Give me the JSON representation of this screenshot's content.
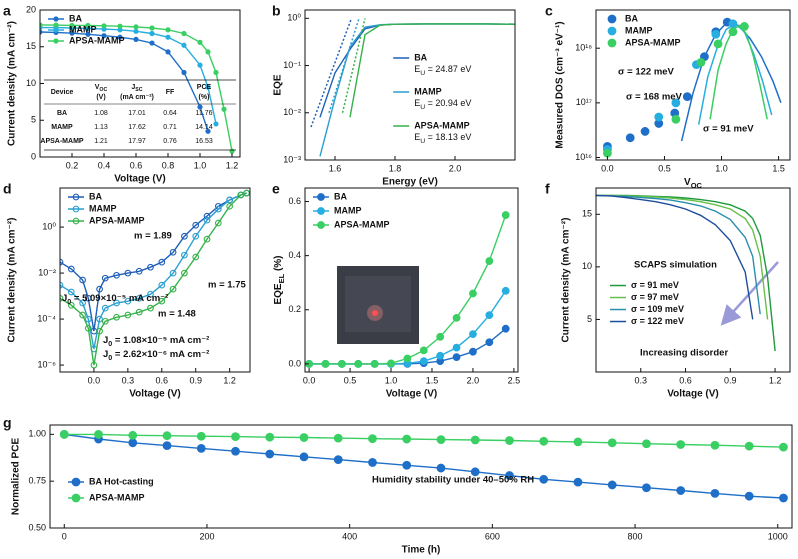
{
  "chart_data": [
    {
      "type": "line",
      "panel": "a",
      "xlabel": "Voltage (V)",
      "ylabel": "Current density (mA cm⁻²)",
      "marker": "filled",
      "legend": "upper left",
      "x": [
        0,
        0.1,
        0.2,
        0.3,
        0.4,
        0.5,
        0.6,
        0.7,
        0.8,
        0.9,
        1.0,
        1.05,
        1.1,
        1.15,
        1.2
      ],
      "xlim": [
        0,
        1.25
      ],
      "ylim": [
        0,
        20
      ],
      "xticks": [
        0.2,
        0.4,
        0.6,
        0.8,
        {
          "value": 1,
          "label": "1.0"
        },
        1.2
      ],
      "yticks": [
        0,
        5,
        10,
        15,
        20
      ],
      "series": [
        {
          "name": "BA",
          "color": "#1f6fc9",
          "values": [
            17.0,
            16.95,
            16.85,
            16.7,
            16.5,
            16.3,
            16.0,
            15.5,
            14.3,
            11.5,
            6.8,
            3.5,
            null,
            null,
            null
          ]
        },
        {
          "name": "MAMP",
          "color": "#27aee0",
          "values": [
            17.6,
            17.6,
            17.55,
            17.5,
            17.4,
            17.3,
            17.1,
            16.8,
            16.3,
            15.2,
            12.5,
            9.5,
            4.5,
            null,
            null
          ]
        },
        {
          "name": "APSA-MAMP",
          "color": "#39cf63",
          "values": [
            17.97,
            17.95,
            17.9,
            17.9,
            17.85,
            17.8,
            17.7,
            17.55,
            17.3,
            16.8,
            15.6,
            14.3,
            11.5,
            6.5,
            0.8
          ]
        }
      ],
      "table": {
        "columns": [
          "Device",
          {
            "text": "V",
            "sub": "OC",
            "line2": "(V)"
          },
          {
            "text": "J",
            "sub": "SC",
            "line2": "(mA cm⁻²)"
          },
          "FF",
          {
            "text": "PCE",
            "line2": "(%)"
          }
        ],
        "rows": [
          [
            "BA",
            1.08,
            17.01,
            0.64,
            11.76
          ],
          [
            "MAMP",
            1.13,
            17.62,
            0.71,
            14.14
          ],
          [
            "APSA-MAMP",
            1.21,
            17.97,
            0.76,
            16.53
          ]
        ]
      }
    },
    {
      "type": "line",
      "panel": "b",
      "xlabel": "Energy (eV)",
      "ylabel": "EQE",
      "marker": "none",
      "legend": "center right",
      "y_scale": "log",
      "fit_line_style": "dotted",
      "x": [
        1.5,
        1.55,
        1.6,
        1.65,
        1.7,
        1.75,
        1.8,
        1.9,
        2.0,
        2.1,
        2.2
      ],
      "xlim": [
        1.5,
        2.2
      ],
      "ylim": [
        0.001,
        1.5
      ],
      "xticks": [
        1.6,
        1.8,
        {
          "value": 2,
          "label": "2.0"
        }
      ],
      "yticks": [
        {
          "value": 0.001,
          "label": "10⁻³"
        },
        {
          "value": 0.01,
          "label": "10⁻²"
        },
        {
          "value": 0.1,
          "label": "10⁻¹"
        },
        {
          "value": 1,
          "label": "10⁰"
        }
      ],
      "series": [
        {
          "name": "BA",
          "urbach": {
            "text": "E",
            "sub": "U",
            "post": " = 24.87 eV"
          },
          "color": "#1f5fb8",
          "values": [
            null,
            0.008,
            0.07,
            0.22,
            0.6,
            0.72,
            0.75,
            0.76,
            0.76,
            0.76,
            0.75
          ],
          "fit_x": [
            1.52,
            1.655
          ],
          "fit_values": [
            0.005,
            1
          ]
        },
        {
          "name": "MAMP",
          "urbach": {
            "text": "E",
            "sub": "U",
            "post": " = 20.94 eV"
          },
          "color": "#2a9fd0",
          "values": [
            null,
            0.0012,
            0.02,
            0.25,
            0.65,
            0.73,
            0.75,
            0.76,
            0.76,
            0.76,
            0.75
          ],
          "fit_x": [
            1.58,
            1.68
          ],
          "fit_values": [
            0.01,
            1
          ]
        },
        {
          "name": "APSA-MAMP",
          "urbach": {
            "text": "E",
            "sub": "U",
            "post": " = 18.13 eV"
          },
          "color": "#36b24a",
          "values": [
            null,
            null,
            null,
            0.008,
            0.45,
            0.72,
            0.75,
            0.76,
            0.76,
            0.76,
            0.75
          ],
          "fit_x": [
            1.625,
            1.7
          ],
          "fit_values": [
            0.01,
            1
          ]
        }
      ]
    },
    {
      "type": "scatter",
      "panel": "c",
      "xlabel": {
        "text": "V",
        "sub": "OC"
      },
      "ylabel": "Measured DOS (cm⁻³ eV⁻¹)",
      "marker": "filled",
      "legend": "upper left",
      "y_scale": "log",
      "fit_line_style": "solid",
      "xlim": [
        -0.1,
        1.6
      ],
      "ylim": [
        9000000000000000.0,
        5e+18
      ],
      "xticks": [
        {
          "value": 0,
          "label": "0.0"
        },
        0.5,
        {
          "value": 1,
          "label": "1.0"
        },
        1.5
      ],
      "yticks": [
        {
          "value": 1e+16,
          "label": "10¹⁶"
        },
        {
          "value": 1e+17,
          "label": "10¹⁷"
        },
        {
          "value": 1e+18,
          "label": "10¹⁸"
        }
      ],
      "series": [
        {
          "name": "BA",
          "color": "#1f6fc9",
          "x": [
            0,
            0.2,
            0.33,
            0.45,
            0.59,
            0.7,
            0.85,
            0.95,
            1.05
          ],
          "values": [
            1.6e+16,
            2.3e+16,
            3e+16,
            4.2e+16,
            6.5e+16,
            1.3e+17,
            7e+17,
            2e+18,
            3e+18
          ],
          "fit_x": [
            0.65,
            0.75,
            0.85,
            0.95,
            1.05,
            1.15,
            1.25,
            1.35,
            1.45,
            1.52
          ],
          "fit_values": [
            2e+16,
            1.5e+17,
            7e+17,
            1.8e+18,
            3e+18,
            2.6e+18,
            1.5e+18,
            7e+17,
            2.5e+17,
            1e+17
          ]
        },
        {
          "name": "MAMP",
          "color": "#27aee0",
          "x": [
            0,
            0.45,
            0.6,
            0.78,
            0.95,
            1.1
          ],
          "values": [
            1.4e+16,
            5.5e+16,
            1e+17,
            5e+17,
            1.8e+18,
            2.8e+18
          ],
          "fit_x": [
            0.8,
            0.88,
            0.96,
            1.04,
            1.12,
            1.2,
            1.28,
            1.36,
            1.44
          ],
          "fit_values": [
            4e+16,
            3e+17,
            1e+18,
            2.2e+18,
            2.8e+18,
            2e+18,
            8e+17,
            2.5e+17,
            6e+16
          ]
        },
        {
          "name": "APSA-MAMP",
          "color": "#39cf63",
          "x": [
            0,
            0.6,
            0.82,
            0.97,
            1.1,
            1.2
          ],
          "values": [
            1.2e+16,
            5e+16,
            5.5e+17,
            1.2e+18,
            2e+18,
            2.5e+18
          ],
          "fit_x": [
            0.9,
            0.97,
            1.04,
            1.1,
            1.16,
            1.22,
            1.28,
            1.34,
            1.4
          ],
          "fit_values": [
            5e+16,
            4e+17,
            1.2e+18,
            2.2e+18,
            2.6e+18,
            1.8e+18,
            7e+17,
            2e+17,
            5e+16
          ]
        }
      ],
      "annotations": [
        {
          "label": "σ = 122 meV",
          "color": "#1f5fb8"
        },
        {
          "label": "σ = 168 meV",
          "color": "#2a9fd0"
        },
        {
          "label": "σ = 91 meV",
          "color": "#2fae3f"
        }
      ]
    },
    {
      "type": "line",
      "panel": "d",
      "xlabel": "Voltage (V)",
      "ylabel": "Current density (mA cm⁻²)",
      "marker": "open",
      "legend": "upper left",
      "y_scale": "log",
      "x": [
        -0.3,
        -0.2,
        -0.1,
        -0.05,
        0,
        0.05,
        0.1,
        0.2,
        0.3,
        0.4,
        0.5,
        0.6,
        0.7,
        0.8,
        0.9,
        1.0,
        1.1,
        1.2,
        1.3,
        1.35
      ],
      "xlim": [
        -0.3,
        1.38
      ],
      "ylim": [
        5e-07,
        50
      ],
      "xticks": [
        {
          "value": 0,
          "label": "0.0"
        },
        0.3,
        0.6,
        0.9,
        1.2
      ],
      "yticks": [
        {
          "value": 1e-06,
          "label": "10⁻⁶"
        },
        {
          "value": 0.0001,
          "label": "10⁻⁴"
        },
        {
          "value": 0.01,
          "label": "10⁻²"
        },
        {
          "value": 1,
          "label": "10⁰"
        }
      ],
      "series": [
        {
          "name": "BA",
          "color": "#1f5fb8",
          "values": [
            0.03,
            0.015,
            0.005,
            0.0008,
            3e-05,
            0.002,
            0.006,
            0.008,
            0.01,
            0.012,
            0.018,
            0.03,
            0.08,
            0.4,
            1.2,
            3,
            8,
            15,
            25,
            30
          ]
        },
        {
          "name": "MAMP",
          "color": "#2a9fd0",
          "values": [
            0.003,
            0.0015,
            0.0005,
            0.0001,
            5e-06,
            0.0001,
            0.0003,
            0.0005,
            0.0006,
            0.0008,
            0.0012,
            0.003,
            0.01,
            0.06,
            0.4,
            2,
            6,
            15,
            25,
            30
          ]
        },
        {
          "name": "APSA-MAMP",
          "color": "#36b24a",
          "values": [
            0.0008,
            0.0004,
            0.00015,
            4e-05,
            1e-06,
            3e-05,
            8e-05,
            0.00012,
            0.00015,
            0.0002,
            0.0003,
            0.0006,
            0.002,
            0.01,
            0.05,
            0.3,
            1.5,
            8,
            25,
            30
          ]
        }
      ],
      "annotations": [
        {
          "label": "m = 1.89",
          "color": "#1f5fb8"
        },
        {
          "label": "m = 1.75",
          "color": "#2a9fd0"
        },
        {
          "label": "m = 1.48",
          "color": "#2fae3f"
        },
        {
          "label": {
            "text": "J",
            "sub": "0",
            "post": " = 5.09×10⁻⁵ mA cm⁻²"
          },
          "color": "#1f5fb8"
        },
        {
          "label": {
            "text": "J",
            "sub": "0",
            "post": " = 1.08×10⁻⁵ mA cm⁻²"
          },
          "color": "#2a9fd0"
        },
        {
          "label": {
            "text": "J",
            "sub": "0",
            "post": " = 2.62×10⁻⁶ mA cm⁻²"
          },
          "color": "#2fae3f"
        }
      ]
    },
    {
      "type": "line",
      "panel": "e",
      "xlabel": "Voltage (V)",
      "ylabel": {
        "text": "EQE",
        "sub": "EL",
        "post": " (%)"
      },
      "marker": "filled",
      "legend": "upper left",
      "x": [
        0,
        0.2,
        0.4,
        0.6,
        0.8,
        1.0,
        1.2,
        1.4,
        1.6,
        1.8,
        2.0,
        2.2,
        2.4
      ],
      "xlim": [
        -0.05,
        2.55
      ],
      "ylim": [
        -0.03,
        0.65
      ],
      "xticks": [
        {
          "value": 0,
          "label": "0.0"
        },
        0.5,
        {
          "value": 1,
          "label": "1.0"
        },
        1.5,
        {
          "value": 2,
          "label": "2.0"
        },
        2.5
      ],
      "yticks": [
        {
          "value": 0,
          "label": "0.0"
        },
        0.2,
        0.4,
        0.6
      ],
      "series": [
        {
          "name": "BA",
          "color": "#1f6fc9",
          "values": [
            0,
            0,
            0,
            0,
            0,
            0,
            0,
            0.003,
            0.01,
            0.025,
            0.045,
            0.08,
            0.13
          ]
        },
        {
          "name": "MAMP",
          "color": "#27aee0",
          "values": [
            0,
            0,
            0,
            0,
            0,
            0,
            0.002,
            0.01,
            0.03,
            0.06,
            0.11,
            0.18,
            0.27
          ]
        },
        {
          "name": "APSA-MAMP",
          "color": "#39cf63",
          "values": [
            0,
            0,
            0,
            0,
            0,
            0.002,
            0.02,
            0.05,
            0.1,
            0.17,
            0.26,
            0.38,
            0.55
          ]
        }
      ]
    },
    {
      "type": "line",
      "panel": "f",
      "xlabel": "Voltage (V)",
      "ylabel": "Current density (mA cm⁻²)",
      "marker": "none",
      "legend": "center left",
      "x": [
        0,
        0.1,
        0.2,
        0.3,
        0.4,
        0.5,
        0.6,
        0.7,
        0.8,
        0.9,
        1.0,
        1.05,
        1.1,
        1.15,
        1.2,
        1.25
      ],
      "xlim": [
        0,
        1.3
      ],
      "ylim": [
        0,
        17.5
      ],
      "xticks": [
        0.3,
        0.6,
        0.9,
        1.2
      ],
      "yticks": [
        5,
        10,
        15
      ],
      "series": [
        {
          "name": "σ = 91 meV",
          "color": "#1f9a3c",
          "values": [
            16.8,
            16.8,
            16.8,
            16.75,
            16.7,
            16.65,
            16.55,
            16.4,
            16.2,
            15.9,
            15.3,
            14.6,
            13,
            9,
            2,
            null
          ]
        },
        {
          "name": "σ = 97 meV",
          "color": "#66c04a",
          "values": [
            16.8,
            16.8,
            16.75,
            16.7,
            16.65,
            16.55,
            16.4,
            16.2,
            15.9,
            15.5,
            14.6,
            13.5,
            11,
            5,
            null,
            null
          ]
        },
        {
          "name": "σ = 109 meV",
          "color": "#2a8fae",
          "values": [
            16.8,
            16.75,
            16.7,
            16.6,
            16.5,
            16.35,
            16.1,
            15.8,
            15.3,
            14.5,
            12.8,
            11,
            5.5,
            null,
            null,
            null
          ]
        },
        {
          "name": "σ = 122 meV",
          "color": "#1f4e9c",
          "values": [
            16.8,
            16.75,
            16.6,
            16.4,
            16.2,
            15.9,
            15.5,
            14.9,
            14,
            12.5,
            9.5,
            5,
            null,
            null,
            null,
            null
          ]
        }
      ],
      "annotations": [
        {
          "label": "SCAPS simulation",
          "color": "#111111"
        },
        {
          "label": "Increasing disorder",
          "color": "#111111"
        }
      ]
    },
    {
      "type": "line",
      "panel": "g",
      "xlabel": "Time (h)",
      "ylabel": "Normalized PCE",
      "marker": "filled",
      "legend": "lower left",
      "x": [
        0,
        48,
        96,
        144,
        192,
        240,
        288,
        336,
        384,
        432,
        480,
        528,
        576,
        624,
        672,
        720,
        768,
        816,
        864,
        912,
        960,
        1008
      ],
      "xlim": [
        -20,
        1020
      ],
      "ylim": [
        0.5,
        1.05
      ],
      "xticks": [
        0,
        200,
        400,
        600,
        800,
        1000
      ],
      "yticks": [
        {
          "value": 0.5,
          "label": "0.50"
        },
        0.75,
        {
          "value": 1,
          "label": "1.00"
        }
      ],
      "series": [
        {
          "name": "BA Hot-casting",
          "color": "#1f6fc9",
          "values": [
            1.0,
            0.975,
            0.955,
            0.94,
            0.925,
            0.91,
            0.895,
            0.88,
            0.865,
            0.85,
            0.835,
            0.82,
            0.8,
            0.78,
            0.76,
            0.745,
            0.73,
            0.715,
            0.7,
            0.685,
            0.67,
            0.66
          ]
        },
        {
          "name": "APSA-MAMP",
          "color": "#39cf63",
          "values": [
            1.0,
            1.0,
            0.995,
            0.993,
            0.99,
            0.988,
            0.985,
            0.983,
            0.98,
            0.977,
            0.975,
            0.972,
            0.97,
            0.967,
            0.963,
            0.96,
            0.955,
            0.95,
            0.946,
            0.942,
            0.937,
            0.932
          ]
        }
      ],
      "annotations": [
        {
          "label": "Humidity stability under 40–50% RH",
          "color": "#111111"
        }
      ]
    }
  ]
}
